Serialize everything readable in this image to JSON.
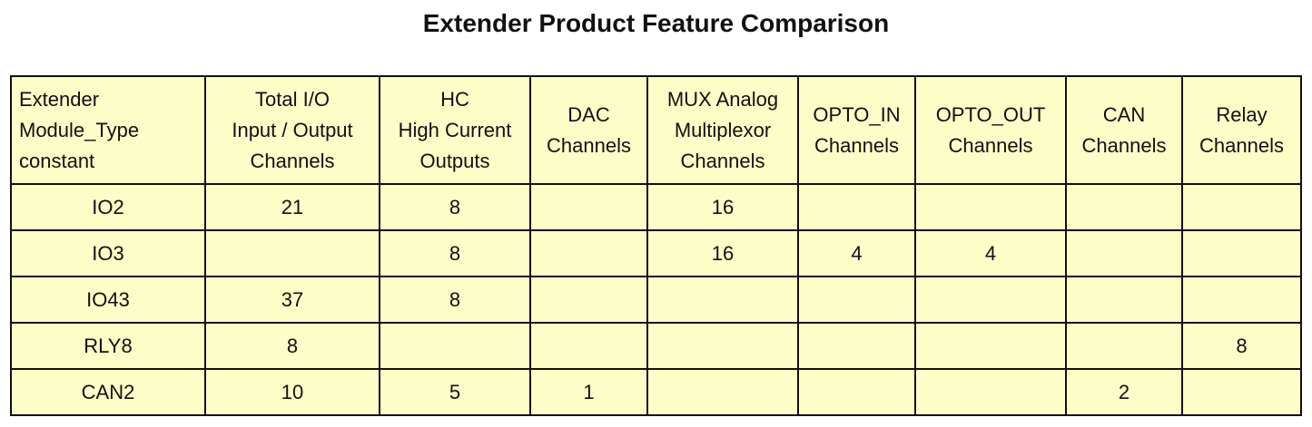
{
  "title": "Extender Product Feature Comparison",
  "table": {
    "headers": [
      [
        "Extender",
        "Module_Type",
        "constant"
      ],
      [
        "Total I/O",
        "Input / Output",
        "Channels"
      ],
      [
        "HC",
        "High Current",
        "Outputs"
      ],
      [
        "DAC",
        "Channels"
      ],
      [
        "MUX Analog",
        "Multiplexor",
        "Channels"
      ],
      [
        "OPTO_IN",
        "Channels"
      ],
      [
        "OPTO_OUT",
        "Channels"
      ],
      [
        "CAN",
        "Channels"
      ],
      [
        "Relay",
        "Channels"
      ]
    ],
    "rows": [
      [
        "IO2",
        21,
        8,
        null,
        16,
        null,
        null,
        null,
        null
      ],
      [
        "IO3",
        null,
        8,
        null,
        16,
        4,
        4,
        null,
        null
      ],
      [
        "IO43",
        37,
        8,
        null,
        null,
        null,
        null,
        null,
        null
      ],
      [
        "RLY8",
        8,
        null,
        null,
        null,
        null,
        null,
        null,
        8
      ],
      [
        "CAN2",
        10,
        5,
        1,
        null,
        null,
        null,
        2,
        null
      ]
    ]
  }
}
